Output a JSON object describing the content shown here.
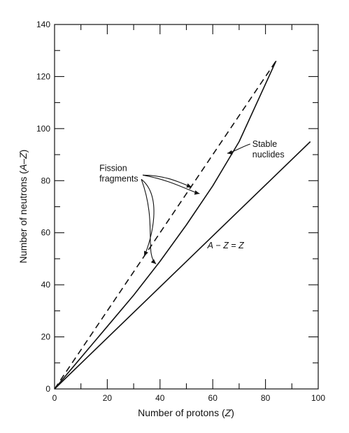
{
  "chart_data": {
    "type": "line",
    "title": "",
    "xlabel": {
      "prefix": "Number of protons (",
      "var": "Z",
      "suffix": ")"
    },
    "ylabel": {
      "prefix": "Number of neutrons (",
      "var": "A–Z",
      "suffix": ")"
    },
    "xlim": [
      0,
      100
    ],
    "ylim": [
      0,
      140
    ],
    "x_ticks": [
      0,
      20,
      40,
      60,
      80,
      100
    ],
    "y_ticks": [
      0,
      20,
      40,
      60,
      80,
      100,
      120,
      140
    ],
    "minor_x_step": 10,
    "minor_y_step": 10,
    "grid": false,
    "series": [
      {
        "key": "fission",
        "style": "dashed",
        "x": [
          0,
          84
        ],
        "y": [
          0,
          126
        ]
      },
      {
        "key": "stable",
        "style": "solid",
        "x": [
          0,
          10,
          20,
          30,
          40,
          50,
          60,
          70,
          84
        ],
        "y": [
          0,
          12,
          24,
          36,
          49,
          63,
          78,
          95,
          126
        ]
      },
      {
        "key": "equal",
        "style": "solid",
        "x": [
          0,
          97
        ],
        "y": [
          0,
          95
        ]
      }
    ],
    "annotations": {
      "fission": {
        "lines": [
          "Fission",
          "fragments"
        ],
        "pos": [
          17,
          80
        ]
      },
      "stable": {
        "lines": [
          "Stable",
          "nuclides"
        ],
        "pos": [
          75,
          93
        ]
      },
      "equal": {
        "parts": [
          "A",
          " − ",
          "Z",
          " = ",
          "Z"
        ],
        "pos": [
          58,
          54
        ]
      }
    }
  }
}
